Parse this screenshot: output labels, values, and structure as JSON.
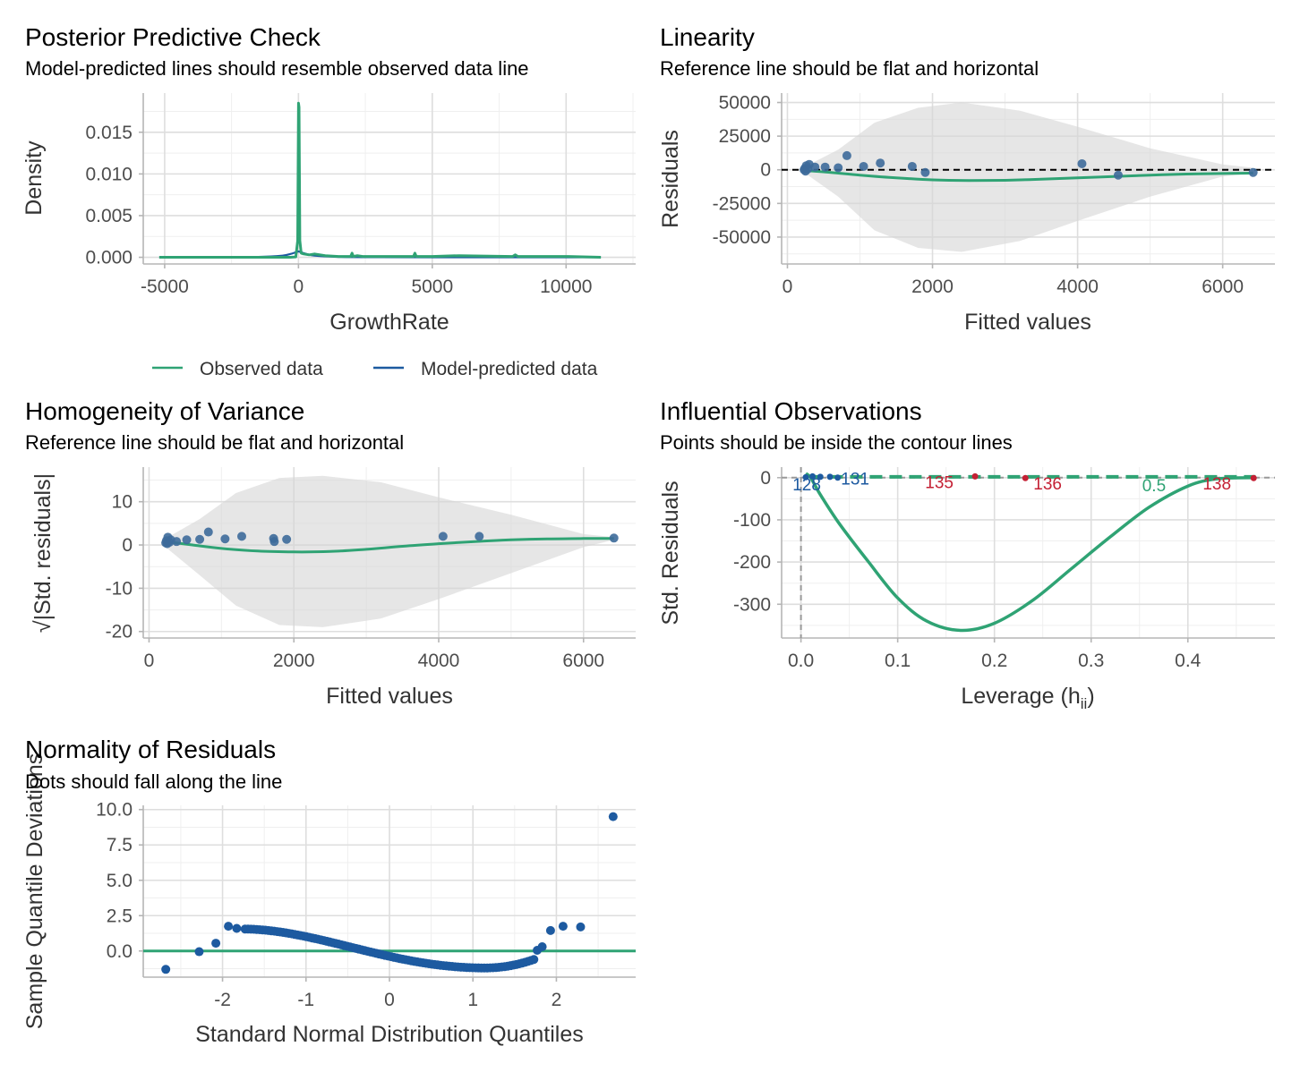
{
  "chart_data": [
    {
      "id": "ppc",
      "type": "line",
      "title": "Posterior Predictive Check",
      "subtitle": "Model-predicted lines should resemble observed data line",
      "xlabel": "GrowthRate",
      "ylabel": "Density",
      "xlim": [
        -5800,
        12600
      ],
      "ylim": [
        -0.0008,
        0.0197
      ],
      "xticks": [
        -5000,
        0,
        5000,
        10000
      ],
      "xtick_labels": [
        "-5000",
        "0",
        "5000",
        "10000"
      ],
      "yticks": [
        0.0,
        0.005,
        0.01,
        0.015
      ],
      "ytick_labels": [
        "0.000",
        "0.005",
        "0.010",
        "0.015"
      ],
      "grid": true,
      "legend": {
        "position": "bottom",
        "entries": [
          {
            "name": "Observed data",
            "color": "#2fa374"
          },
          {
            "name": "Model-predicted data",
            "color": "#1d5aa0"
          }
        ]
      },
      "series": [
        {
          "name": "Model-predicted data",
          "color": "#1d5aa0",
          "x": [
            -5200,
            -3000,
            -1500,
            -600,
            -300,
            -100,
            0,
            100,
            300,
            600,
            1500,
            3000,
            5000,
            8000,
            11300
          ],
          "y": [
            0.0,
            0.0,
            5e-05,
            0.0002,
            0.0004,
            0.0006,
            0.0007,
            0.0006,
            0.0004,
            0.0002,
            5e-05,
            2e-05,
            0.0,
            0.0,
            0.0
          ]
        },
        {
          "name": "Observed data",
          "color": "#2fa374",
          "x": [
            -5200,
            -2000,
            -300,
            -100,
            -30,
            0,
            20,
            50,
            100,
            200,
            400,
            600,
            1000,
            1500,
            1950,
            2000,
            2050,
            2200,
            2400,
            3000,
            4300,
            4350,
            4400,
            5000,
            6000,
            8000,
            8100,
            8200,
            10000,
            11300
          ],
          "y": [
            0.0,
            0.0,
            0.0,
            5e-05,
            0.002,
            0.0185,
            0.018,
            0.002,
            0.0005,
            0.0004,
            0.0003,
            0.0004,
            0.0002,
            0.0001,
            0.0001,
            0.0005,
            0.0001,
            0.0002,
            0.0001,
            0.0001,
            0.0001,
            0.0005,
            0.0001,
            0.0001,
            0.0002,
            0.0001,
            0.0003,
            0.0001,
            0.0001,
            0.0
          ]
        }
      ]
    },
    {
      "id": "linearity",
      "type": "scatter",
      "title": "Linearity",
      "subtitle": "Reference line should be flat and horizontal",
      "xlabel": "Fitted values",
      "ylabel": "Residuals",
      "xlim": [
        -80,
        6720
      ],
      "ylim": [
        -70000,
        57000
      ],
      "xticks": [
        0,
        2000,
        4000,
        6000
      ],
      "xtick_labels": [
        "0",
        "2000",
        "4000",
        "6000"
      ],
      "yticks": [
        -50000,
        -25000,
        0,
        25000,
        50000
      ],
      "ytick_labels": [
        "-50000",
        "-25000",
        "0",
        "25000",
        "50000"
      ],
      "grid": true,
      "reference_line": 0,
      "band": {
        "x": [
          230,
          700,
          1200,
          1800,
          2400,
          3200,
          4000,
          5000,
          6000,
          6420
        ],
        "upper": [
          2000,
          15000,
          35000,
          46000,
          50000,
          44000,
          32000,
          16000,
          4000,
          1500
        ],
        "lower": [
          -2000,
          -20000,
          -45000,
          -58000,
          -61000,
          -53000,
          -38000,
          -20000,
          -5000,
          -2500
        ]
      },
      "smooth": {
        "x": [
          230,
          600,
          1000,
          1500,
          2000,
          2500,
          3000,
          3500,
          4000,
          4500,
          5000,
          5500,
          6000,
          6420
        ],
        "y": [
          -500,
          -2000,
          -4000,
          -6000,
          -7500,
          -8000,
          -7800,
          -7000,
          -6000,
          -5000,
          -4000,
          -3200,
          -2800,
          -2500
        ]
      },
      "points": {
        "x": [
          230,
          240,
          250,
          260,
          280,
          300,
          380,
          520,
          700,
          820,
          1050,
          1280,
          1720,
          1900,
          4060,
          4560,
          6420
        ],
        "y": [
          0,
          1000,
          -1000,
          3000,
          500,
          4000,
          2000,
          2000,
          1500,
          10500,
          2500,
          5000,
          2500,
          -2000,
          4500,
          -4000,
          -2000
        ]
      }
    },
    {
      "id": "homogeneity",
      "type": "scatter",
      "title": "Homogeneity of Variance",
      "subtitle": "Reference line should be flat and horizontal",
      "xlabel": "Fitted values",
      "ylabel": "√|Std. residuals|",
      "xlim": [
        -80,
        6720
      ],
      "ylim": [
        -21.5,
        18
      ],
      "xticks": [
        0,
        2000,
        4000,
        6000
      ],
      "xtick_labels": [
        "0",
        "2000",
        "4000",
        "6000"
      ],
      "yticks": [
        -20,
        -10,
        0,
        10
      ],
      "ytick_labels": [
        "-20",
        "-10",
        "0",
        "10"
      ],
      "grid": true,
      "band": {
        "x": [
          230,
          700,
          1200,
          1800,
          2400,
          3200,
          4000,
          5000,
          6000,
          6420
        ],
        "upper": [
          1.5,
          6,
          12,
          15.5,
          16,
          14.5,
          11,
          7,
          2.5,
          1.8
        ],
        "lower": [
          -0.5,
          -7,
          -14,
          -18.5,
          -19,
          -17,
          -12.5,
          -6.5,
          -0.5,
          1.2
        ]
      },
      "smooth": {
        "x": [
          230,
          600,
          1000,
          1500,
          2000,
          2500,
          3000,
          3500,
          4000,
          4500,
          5000,
          5500,
          6000,
          6420
        ],
        "y": [
          0.8,
          0.0,
          -0.8,
          -1.4,
          -1.6,
          -1.5,
          -1.0,
          -0.3,
          0.3,
          0.8,
          1.2,
          1.4,
          1.5,
          1.5
        ]
      },
      "points": {
        "x": [
          230,
          240,
          250,
          260,
          280,
          300,
          380,
          520,
          700,
          820,
          1050,
          1280,
          1720,
          1730,
          1900,
          4060,
          4560,
          6420
        ],
        "y": [
          0.5,
          1.0,
          0.3,
          1.8,
          0.6,
          1.2,
          0.8,
          1.2,
          1.3,
          3.0,
          1.4,
          2.0,
          1.5,
          0.8,
          1.3,
          2.0,
          2.0,
          1.6
        ]
      }
    },
    {
      "id": "influential",
      "type": "scatter",
      "title": "Influential Observations",
      "subtitle": "Points should be inside the contour lines",
      "xlabel": "Leverage (hii)",
      "ylabel": "Std. Residuals",
      "xlim": [
        -0.02,
        0.49
      ],
      "ylim": [
        -380,
        25
      ],
      "xticks": [
        0.0,
        0.1,
        0.2,
        0.3,
        0.4
      ],
      "xtick_labels": [
        "0.0",
        "0.1",
        "0.2",
        "0.3",
        "0.4"
      ],
      "yticks": [
        -300,
        -200,
        -100,
        0
      ],
      "ytick_labels": [
        "-300",
        "-200",
        "-100",
        "0"
      ],
      "grid": true,
      "contour_label": "0.5",
      "contour_y": 2,
      "smooth": {
        "x": [
          0.005,
          0.01,
          0.02,
          0.04,
          0.07,
          0.1,
          0.13,
          0.165,
          0.2,
          0.24,
          0.28,
          0.32,
          0.36,
          0.4,
          0.43,
          0.47
        ],
        "y": [
          10,
          0,
          -40,
          -110,
          -200,
          -285,
          -340,
          -362,
          -345,
          -290,
          -215,
          -140,
          -70,
          -20,
          -3,
          0
        ]
      },
      "points": [
        {
          "x": 0.005,
          "y": 1,
          "color": "#1d5aa0"
        },
        {
          "x": 0.012,
          "y": 3,
          "color": "#1d5aa0"
        },
        {
          "x": 0.02,
          "y": 2,
          "color": "#1d5aa0"
        },
        {
          "x": 0.03,
          "y": 2,
          "color": "#1d5aa0"
        },
        {
          "x": 0.038,
          "y": 0,
          "color": "#1d5aa0"
        },
        {
          "x": 0.18,
          "y": 3,
          "color": "#c42034"
        },
        {
          "x": 0.232,
          "y": -1,
          "color": "#c42034"
        },
        {
          "x": 0.468,
          "y": -1,
          "color": "#c42034"
        }
      ],
      "labels": [
        {
          "text": "128",
          "x": 0.006,
          "y": -30,
          "color": "#1d5aa0"
        },
        {
          "text": "131",
          "x": 0.056,
          "y": -16,
          "color": "#1d5aa0"
        },
        {
          "text": "135",
          "x": 0.143,
          "y": -25,
          "color": "#c42034"
        },
        {
          "text": "136",
          "x": 0.255,
          "y": -28,
          "color": "#c42034"
        },
        {
          "text": "138",
          "x": 0.43,
          "y": -28,
          "color": "#c42034"
        }
      ]
    },
    {
      "id": "normality",
      "type": "scatter",
      "title": "Normality of Residuals",
      "subtitle": "Dots should fall along the line",
      "xlabel": "Standard Normal Distribution Quantiles",
      "ylabel": "Sample Quantile Deviations",
      "xlim": [
        -2.95,
        2.95
      ],
      "ylim": [
        -1.85,
        10.3
      ],
      "xticks": [
        -2,
        -1,
        0,
        1,
        2
      ],
      "xtick_labels": [
        "-2",
        "-1",
        "0",
        "1",
        "2"
      ],
      "yticks": [
        0.0,
        2.5,
        5.0,
        7.5,
        10.0
      ],
      "ytick_labels": [
        "0.0",
        "2.5",
        "5.0",
        "7.5",
        "10.0"
      ],
      "grid": true,
      "reference_line": 0,
      "outliers": {
        "x": [
          -2.68,
          -2.28,
          -2.08,
          -1.93,
          -1.83,
          1.77,
          1.83,
          1.93,
          2.08,
          2.29,
          2.68
        ],
        "y": [
          -1.3,
          -0.05,
          0.55,
          1.75,
          1.6,
          0.05,
          0.3,
          1.45,
          1.75,
          1.7,
          9.5
        ]
      },
      "dense": {
        "x_start": -1.73,
        "x_end": 1.73,
        "count": 100,
        "peak": 1.55,
        "trough": -1.2,
        "trough_x": 1.15
      }
    }
  ]
}
